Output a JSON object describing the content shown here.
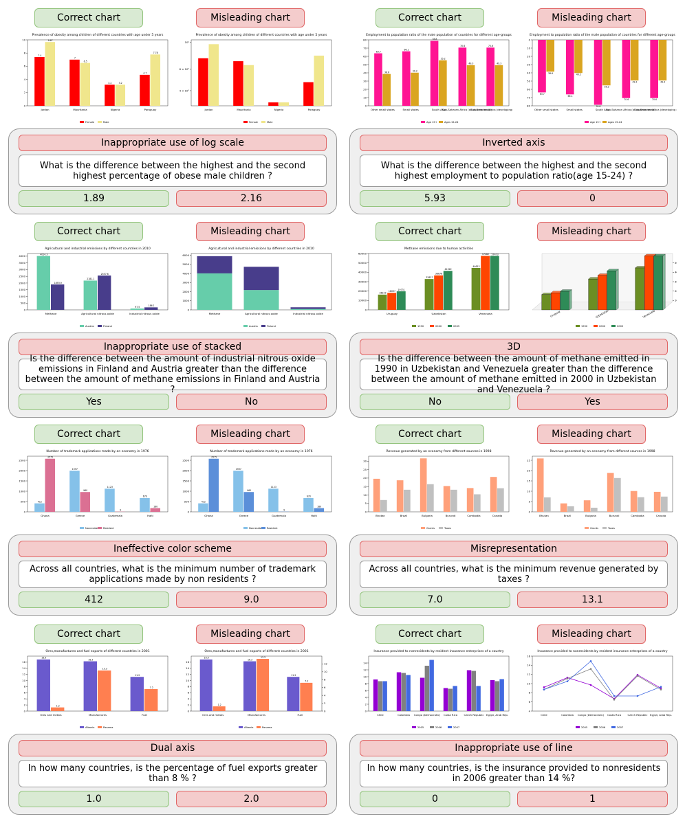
{
  "labels": {
    "correct": "Correct chart",
    "misleading": "Misleading chart"
  },
  "panels": [
    {
      "title": "Inappropriate use of log scale",
      "question": "What is the difference between the highest and the second highest percentage of obese male children ?",
      "answers": {
        "correct": "1.89",
        "misleading": "2.16"
      },
      "correct_chart": {
        "type": "bar",
        "title": "Prevalence of obesity among children of different countries with age under 5 years",
        "categories": [
          "Jordan",
          "Mauritania",
          "Nigeria",
          "Paraguay"
        ],
        "series": [
          {
            "name": "Female",
            "color": "#ff0000",
            "values": [
              7.4,
              7.0,
              3.2,
              4.7
            ]
          },
          {
            "name": "Male",
            "color": "#f0e68c",
            "values": [
              9.67,
              6.5,
              3.2,
              7.78
            ]
          }
        ],
        "ylim": [
          0,
          10
        ],
        "yticks": [
          0,
          2,
          4,
          6,
          8,
          10
        ],
        "data_labels": true
      },
      "misleading_chart": {
        "type": "bar",
        "title": "Prevalence of obesity among children of different countries with age under 5 years",
        "categories": [
          "Jordan",
          "Mauritania",
          "Nigeria",
          "Paraguay"
        ],
        "series": [
          {
            "name": "Female",
            "color": "#ff0000",
            "values": [
              7.4,
              7.0,
              3.2,
              4.7
            ]
          },
          {
            "name": "Male",
            "color": "#f0e68c",
            "values": [
              9.67,
              6.5,
              3.2,
              7.78
            ]
          }
        ],
        "log_scale": true,
        "ylim": [
          3,
          10.5
        ],
        "yticks": [
          {
            "value": 4,
            "label": "4 × 10⁰"
          },
          {
            "value": 6,
            "label": "6 × 10⁰"
          },
          {
            "value": 10,
            "label": "10¹"
          }
        ]
      }
    },
    {
      "title": "Inverted axis",
      "question": "What is the difference between the highest and the second highest employment to population ratio(age 15-24) ?",
      "answers": {
        "correct": "5.93",
        "misleading": "0"
      },
      "correct_chart": {
        "type": "bar",
        "title": "Employment to population ratio of the male population of countries for different age-groups",
        "categories": [
          "Other small states",
          "Small states",
          "South Asia",
          "Sub-Saharan Africa (all income levels)",
          "Sub-Saharan Africa (developing only)"
        ],
        "series": [
          {
            "name": "Age 15+",
            "color": "#ff1493",
            "values": [
              63.7,
              66.1,
              78.8,
              70.6,
              70.6
            ]
          },
          {
            "name": "Ages 15-24",
            "color": "#daa520",
            "values": [
              38.6,
              40.2,
              55.2,
              49.3,
              49.3
            ]
          }
        ],
        "ylim": [
          0,
          80
        ],
        "yticks": [
          0,
          10,
          20,
          30,
          40,
          50,
          60,
          70,
          80
        ],
        "data_labels": true
      },
      "misleading_chart": {
        "type": "bar",
        "title": "Employment to population ratio of the male population of countries for different age-groups",
        "categories": [
          "Other small states",
          "Small states",
          "South Asia",
          "Sub-Saharan Africa (all income levels)",
          "Sub-Saharan Africa (developing only)"
        ],
        "series": [
          {
            "name": "Age 15+",
            "color": "#ff1493",
            "values": [
              63.7,
              66.1,
              78.8,
              70.6,
              70.6
            ]
          },
          {
            "name": "Ages 15-24",
            "color": "#daa520",
            "values": [
              38.6,
              40.2,
              55.2,
              49.3,
              49.3
            ]
          }
        ],
        "inverted": true,
        "ylim": [
          0,
          80
        ],
        "yticks": [
          0,
          10,
          20,
          30,
          40,
          50,
          60,
          70,
          80
        ],
        "data_labels": true
      }
    },
    {
      "title": "Inappropriate use of stacked",
      "question": "Is the difference between the amount of industrial nitrous oxide emissions in Finland and Austria greater than the difference between the amount of methane emissions in Finland and Austria ?",
      "answers": {
        "correct": "Yes",
        "misleading": "No"
      },
      "correct_chart": {
        "type": "bar",
        "title": "Agricultural and industrial emissions by different countries in 2010",
        "categories": [
          "Methane",
          "Agricultural nitrous oxide",
          "Industrial nitrous oxide"
        ],
        "series": [
          {
            "name": "Austria",
            "color": "#66cdaa",
            "values": [
              4014.3,
              2181.1,
              97.5
            ]
          },
          {
            "name": "Finland",
            "color": "#483d8b",
            "values": [
              1893.9,
              2557.6,
              186.1
            ]
          }
        ],
        "ylim": [
          0,
          4200
        ],
        "yticks": [
          0,
          500,
          1000,
          1500,
          2000,
          2500,
          3000,
          3500,
          4000
        ],
        "data_labels": true
      },
      "misleading_chart": {
        "type": "stacked",
        "title": "Agricultural and industrial emissions by different countries in 2010",
        "categories": [
          "Methane",
          "Agricultural nitrous oxide",
          "Industrial nitrous oxide"
        ],
        "series": [
          {
            "name": "Austria",
            "color": "#66cdaa",
            "values": [
              4014.3,
              2181.1,
              97.5
            ]
          },
          {
            "name": "Finland",
            "color": "#483d8b",
            "values": [
              1893.9,
              2557.6,
              186.1
            ]
          }
        ],
        "ylim": [
          0,
          6200
        ],
        "yticks": [
          0,
          1000,
          2000,
          3000,
          4000,
          5000,
          6000
        ]
      }
    },
    {
      "title": "3D",
      "question": "Is the difference between the amount of methane emitted in 1990 in Uzbekistan and Venezuela greater than the difference between the amount of methane emitted in 2000 in Uzbekistan and Venezuela ?",
      "answers": {
        "correct": "No",
        "misleading": "Yes"
      },
      "correct_chart": {
        "type": "bar",
        "title": "Methane emissions due to human activities",
        "categories": [
          "Uruguay",
          "Uzbekistan",
          "Venezuela"
        ],
        "series": [
          {
            "name": "1990",
            "color": "#6b8e23",
            "values": [
              16233,
              32837,
              44653
            ]
          },
          {
            "name": "2000",
            "color": "#ff4500",
            "values": [
              18097,
              36676,
              57482
            ]
          },
          {
            "name": "2005",
            "color": "#2e8b57",
            "values": [
              19731,
              41522,
              57473
            ]
          }
        ],
        "ylim": [
          0,
          60000
        ],
        "yticks": [
          0,
          10000,
          20000,
          30000,
          40000,
          50000,
          60000
        ],
        "data_labels": true
      },
      "misleading_chart": {
        "type": "bar3d",
        "categories": [
          "Uruguay",
          "Uzbekistan",
          "Venezuela"
        ],
        "series": [
          {
            "name": "1990",
            "color": "#6b8e23",
            "values": [
              16233,
              32837,
              44653
            ]
          },
          {
            "name": "2000",
            "color": "#ff4500",
            "values": [
              18097,
              36676,
              57482
            ]
          },
          {
            "name": "2005",
            "color": "#2e8b57",
            "values": [
              19731,
              41522,
              57473
            ]
          }
        ],
        "ylim": [
          0,
          60000
        ],
        "yticks": [
          10000,
          20000,
          30000,
          40000,
          50000
        ]
      }
    },
    {
      "title": "Ineffective color scheme",
      "question": "Across all countries, what is the minimum number of trademark applications made by non residents ?",
      "answers": {
        "correct": "412",
        "misleading": "9.0"
      },
      "correct_chart": {
        "type": "bar",
        "title": "Number of trademark applications made by an economy in 1976",
        "categories": [
          "Ghana",
          "Greece",
          "Guatemala",
          "Haiti"
        ],
        "series": [
          {
            "name": "Nonresident",
            "color": "#85c1e9",
            "values": [
              412,
              1997,
              1123,
              670
            ]
          },
          {
            "name": "Resident",
            "color": "#db7093",
            "values": [
              2575,
              960,
              9,
              180
            ]
          }
        ],
        "ylim": [
          0,
          2700
        ],
        "yticks": [
          0,
          500,
          1000,
          1500,
          2000,
          2500
        ],
        "data_labels": true
      },
      "misleading_chart": {
        "type": "bar",
        "title": "Number of trademark applications made by an economy in 1976",
        "categories": [
          "Ghana",
          "Greece",
          "Guatemala",
          "Haiti"
        ],
        "series": [
          {
            "name": "Nonresident",
            "color": "#85c1e9",
            "values": [
              412,
              1997,
              1123,
              670
            ]
          },
          {
            "name": "Resident",
            "color": "#5b8fd9",
            "values": [
              2575,
              960,
              9,
              180
            ]
          }
        ],
        "ylim": [
          0,
          2700
        ],
        "yticks": [
          0,
          500,
          1000,
          1500,
          2000,
          2500
        ],
        "data_labels": true
      }
    },
    {
      "title": "Misrepresentation",
      "question": "Across all countries, what is the minimum revenue generated by taxes ?",
      "answers": {
        "correct": "7.0",
        "misleading": "13.1"
      },
      "correct_chart": {
        "type": "bar",
        "title": "Revenue generated by an economy from different sources in 1998",
        "categories": [
          "Bhutan",
          "Brazil",
          "Bulgaria",
          "Burundi",
          "Cambodia",
          "Canada"
        ],
        "series": [
          {
            "name": "Grants",
            "color": "#ffa07a",
            "values": [
              19.6,
              18.7,
              31.7,
              15.3,
              14.1,
              20.7
            ]
          },
          {
            "name": "Taxes",
            "color": "#c0c0c0",
            "values": [
              7,
              13.1,
              16.4,
              13.1,
              10.4,
              14
            ]
          }
        ],
        "ylim": [
          0,
          33
        ],
        "yticks": [
          0,
          5,
          10,
          15,
          20,
          25,
          30
        ]
      },
      "misleading_chart": {
        "type": "bar",
        "title": "Revenue generated by an economy from different sources in 1998",
        "categories": [
          "Bhutan",
          "Brazil",
          "Bulgaria",
          "Burundi",
          "Cambodia",
          "Canada"
        ],
        "series": [
          {
            "name": "Grants",
            "color": "#ffa07a",
            "values": [
              25.9,
              4.1,
              5.6,
              18.9,
              10.1,
              9.7
            ]
          },
          {
            "name": "Taxes",
            "color": "#c0c0c0",
            "values": [
              7,
              2.7,
              2,
              16.4,
              7.1,
              7.4
            ]
          }
        ],
        "ylim": [
          0,
          27
        ],
        "yticks": [
          0,
          5,
          10,
          15,
          20,
          25
        ]
      }
    },
    {
      "title": "Dual axis",
      "question": "In how many countries, is the percentage of fuel exports greater than 8 % ?",
      "answers": {
        "correct": "1.0",
        "misleading": "2.0"
      },
      "correct_chart": {
        "type": "bar",
        "title": "Ores,manufactures and fuel exports of different countries in 2001",
        "categories": [
          "Ores and metals",
          "Manufactures",
          "Fuel"
        ],
        "series": [
          {
            "name": "Albania",
            "color": "#6a5acd",
            "values": [
              16.9,
              16.3,
              11.2
            ]
          },
          {
            "name": "Panama",
            "color": "#ff7f50",
            "values": [
              1.2,
              13.3,
              7.2
            ]
          }
        ],
        "ylim": [
          0,
          18
        ],
        "yticks": [
          0,
          2,
          4,
          6,
          8,
          10,
          12,
          14,
          16
        ],
        "data_labels": true
      },
      "misleading_chart": {
        "type": "bar",
        "title": "Ores,manufactures and fuel exports of different countries in 2001",
        "categories": [
          "Ores and metals",
          "Manufactures",
          "Fuel"
        ],
        "series": [
          {
            "name": "Albania",
            "color": "#6a5acd",
            "values": [
              16.9,
              16.3,
              11.2
            ]
          },
          {
            "name": "Panama",
            "color": "#ff7f50",
            "values": [
              1.2,
              13.3,
              7.2
            ],
            "axis": "y2"
          }
        ],
        "ylim": [
          0,
          18
        ],
        "yticks": [
          0,
          2,
          4,
          6,
          8,
          10,
          12,
          14,
          16
        ],
        "y2lim": [
          0,
          14
        ],
        "y2ticks": [
          0,
          2,
          4,
          6,
          8,
          10,
          12
        ],
        "data_labels": true
      }
    },
    {
      "title": "Inappropriate use of line",
      "question": "In how many countries, is the insurance provided to nonresidents in 2006 greater than 14 %?",
      "answers": {
        "correct": "0",
        "misleading": "1"
      },
      "correct_chart": {
        "type": "bar",
        "title": "Insurance provided to nonresidents by resident insurance enterprises of a country",
        "categories": [
          "Chile",
          "Colombia",
          "Congo (Democratic)",
          "Costa Rica",
          "Czech Republic",
          "Egypt, Arab Rep."
        ],
        "series": [
          {
            "name": "2005",
            "color": "#9400d3",
            "values": [
              9.2,
              11.3,
              9.7,
              6.7,
              11.9,
              9.0
            ]
          },
          {
            "name": "2006",
            "color": "#808080",
            "values": [
              8.7,
              11.1,
              13.2,
              6.5,
              11.7,
              8.7
            ]
          },
          {
            "name": "2007",
            "color": "#4169e1",
            "values": [
              8.7,
              10.5,
              14.9,
              7.3,
              7.3,
              9.3
            ]
          }
        ],
        "ylim": [
          0,
          16
        ],
        "yticks": [
          0,
          2,
          4,
          6,
          8,
          10,
          12,
          14
        ]
      },
      "misleading_chart": {
        "type": "line",
        "title": "Insurance provided to nonresidents by resident insurance enterprises of a country",
        "categories": [
          "Chile",
          "Colombia",
          "Congo (Democratic)",
          "Costa Rica",
          "Czech Republic",
          "Egypt, Arab Rep."
        ],
        "series": [
          {
            "name": "2005",
            "color": "#9400d3",
            "values": [
              9.2,
              11.3,
              9.7,
              6.7,
              11.9,
              9.0
            ]
          },
          {
            "name": "2006",
            "color": "#808080",
            "values": [
              8.7,
              11.1,
              13.2,
              6.5,
              11.7,
              8.7
            ]
          },
          {
            "name": "2007",
            "color": "#4169e1",
            "values": [
              8.7,
              10.5,
              14.9,
              7.3,
              7.3,
              9.3
            ]
          }
        ],
        "ylim": [
          4,
          16
        ],
        "yticks": [
          4,
          6,
          8,
          10,
          12,
          14,
          16
        ]
      }
    }
  ]
}
